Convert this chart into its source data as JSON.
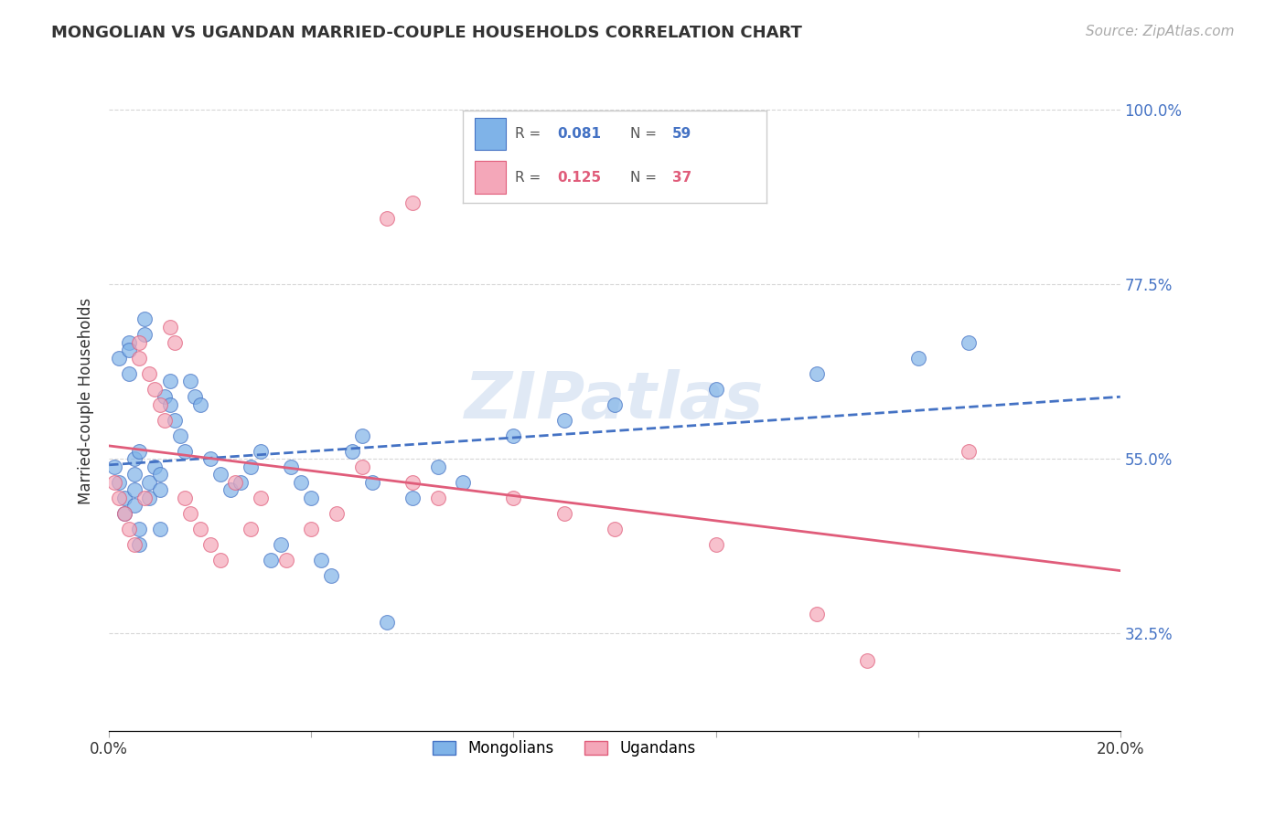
{
  "title": "MONGOLIAN VS UGANDAN MARRIED-COUPLE HOUSEHOLDS CORRELATION CHART",
  "source": "Source: ZipAtlas.com",
  "ylabel": "Married-couple Households",
  "xlim": [
    0.0,
    0.2
  ],
  "ylim": [
    0.2,
    1.05
  ],
  "yticks": [
    0.325,
    0.55,
    0.775,
    1.0
  ],
  "ytick_labels": [
    "32.5%",
    "55.0%",
    "77.5%",
    "100.0%"
  ],
  "xticks": [
    0.0,
    0.04,
    0.08,
    0.12,
    0.16,
    0.2
  ],
  "xtick_labels": [
    "0.0%",
    "",
    "",
    "",
    "",
    "20.0%"
  ],
  "grid_color": "#cccccc",
  "background_color": "#ffffff",
  "mongolian_color": "#7fb3e8",
  "ugandan_color": "#f4a7b9",
  "mongolian_line_color": "#4472c4",
  "ugandan_line_color": "#e05c7a",
  "watermark": "ZIPatlas",
  "mongolian_x": [
    0.001,
    0.002,
    0.002,
    0.003,
    0.003,
    0.004,
    0.004,
    0.004,
    0.005,
    0.005,
    0.005,
    0.005,
    0.006,
    0.006,
    0.006,
    0.007,
    0.007,
    0.008,
    0.008,
    0.009,
    0.01,
    0.01,
    0.01,
    0.011,
    0.012,
    0.012,
    0.013,
    0.014,
    0.015,
    0.016,
    0.017,
    0.018,
    0.02,
    0.022,
    0.024,
    0.026,
    0.028,
    0.03,
    0.032,
    0.034,
    0.036,
    0.038,
    0.04,
    0.042,
    0.044,
    0.048,
    0.05,
    0.052,
    0.055,
    0.06,
    0.065,
    0.07,
    0.08,
    0.09,
    0.1,
    0.12,
    0.14,
    0.16,
    0.17
  ],
  "mongolian_y": [
    0.54,
    0.52,
    0.68,
    0.5,
    0.48,
    0.7,
    0.66,
    0.69,
    0.49,
    0.51,
    0.53,
    0.55,
    0.46,
    0.44,
    0.56,
    0.71,
    0.73,
    0.5,
    0.52,
    0.54,
    0.51,
    0.53,
    0.46,
    0.63,
    0.65,
    0.62,
    0.6,
    0.58,
    0.56,
    0.65,
    0.63,
    0.62,
    0.55,
    0.53,
    0.51,
    0.52,
    0.54,
    0.56,
    0.42,
    0.44,
    0.54,
    0.52,
    0.5,
    0.42,
    0.4,
    0.56,
    0.58,
    0.52,
    0.34,
    0.5,
    0.54,
    0.52,
    0.58,
    0.6,
    0.62,
    0.64,
    0.66,
    0.68,
    0.7
  ],
  "ugandan_x": [
    0.001,
    0.002,
    0.003,
    0.004,
    0.005,
    0.006,
    0.006,
    0.007,
    0.008,
    0.009,
    0.01,
    0.011,
    0.012,
    0.013,
    0.015,
    0.016,
    0.018,
    0.02,
    0.022,
    0.025,
    0.028,
    0.03,
    0.035,
    0.04,
    0.045,
    0.05,
    0.055,
    0.06,
    0.065,
    0.06,
    0.08,
    0.09,
    0.1,
    0.12,
    0.14,
    0.15,
    0.17
  ],
  "ugandan_y": [
    0.52,
    0.5,
    0.48,
    0.46,
    0.44,
    0.7,
    0.68,
    0.5,
    0.66,
    0.64,
    0.62,
    0.6,
    0.72,
    0.7,
    0.5,
    0.48,
    0.46,
    0.44,
    0.42,
    0.52,
    0.46,
    0.5,
    0.42,
    0.46,
    0.48,
    0.54,
    0.86,
    0.88,
    0.5,
    0.52,
    0.5,
    0.48,
    0.46,
    0.44,
    0.35,
    0.29,
    0.56
  ]
}
